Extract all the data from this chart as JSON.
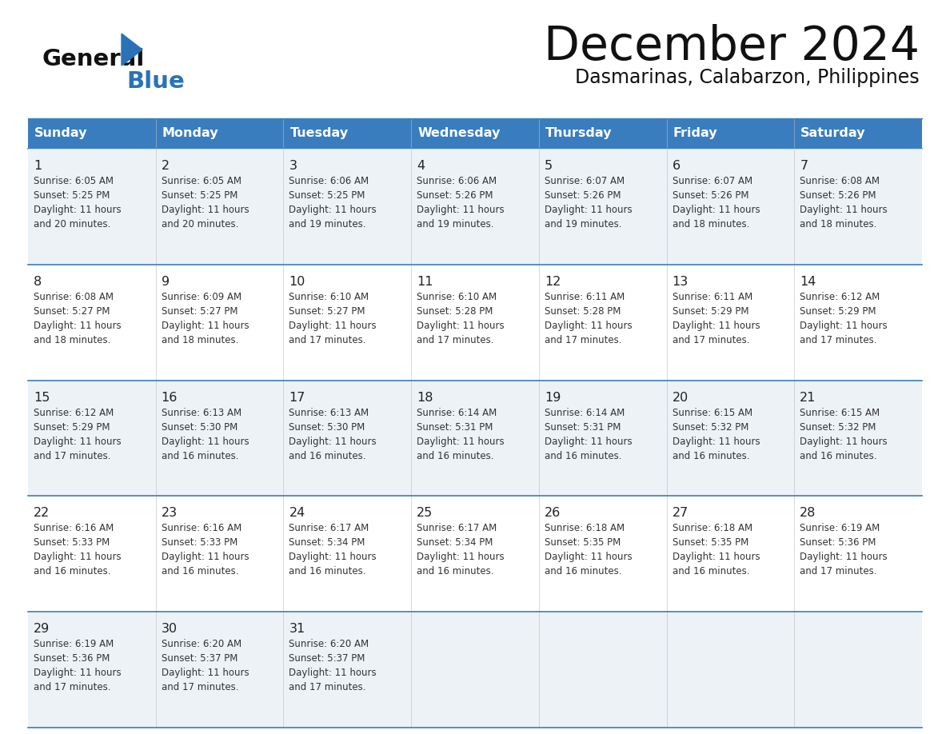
{
  "title": "December 2024",
  "subtitle": "Dasmarinas, Calabarzon, Philippines",
  "header_bg_color": "#3a7dbf",
  "header_text_color": "#ffffff",
  "grid_line_color": "#3a7dbf",
  "day_names": [
    "Sunday",
    "Monday",
    "Tuesday",
    "Wednesday",
    "Thursday",
    "Friday",
    "Saturday"
  ],
  "weeks": [
    [
      {
        "day": 1,
        "sunrise": "6:05 AM",
        "sunset": "5:25 PM",
        "daylight_hours": 11,
        "daylight_minutes": 20
      },
      {
        "day": 2,
        "sunrise": "6:05 AM",
        "sunset": "5:25 PM",
        "daylight_hours": 11,
        "daylight_minutes": 20
      },
      {
        "day": 3,
        "sunrise": "6:06 AM",
        "sunset": "5:25 PM",
        "daylight_hours": 11,
        "daylight_minutes": 19
      },
      {
        "day": 4,
        "sunrise": "6:06 AM",
        "sunset": "5:26 PM",
        "daylight_hours": 11,
        "daylight_minutes": 19
      },
      {
        "day": 5,
        "sunrise": "6:07 AM",
        "sunset": "5:26 PM",
        "daylight_hours": 11,
        "daylight_minutes": 19
      },
      {
        "day": 6,
        "sunrise": "6:07 AM",
        "sunset": "5:26 PM",
        "daylight_hours": 11,
        "daylight_minutes": 18
      },
      {
        "day": 7,
        "sunrise": "6:08 AM",
        "sunset": "5:26 PM",
        "daylight_hours": 11,
        "daylight_minutes": 18
      }
    ],
    [
      {
        "day": 8,
        "sunrise": "6:08 AM",
        "sunset": "5:27 PM",
        "daylight_hours": 11,
        "daylight_minutes": 18
      },
      {
        "day": 9,
        "sunrise": "6:09 AM",
        "sunset": "5:27 PM",
        "daylight_hours": 11,
        "daylight_minutes": 18
      },
      {
        "day": 10,
        "sunrise": "6:10 AM",
        "sunset": "5:27 PM",
        "daylight_hours": 11,
        "daylight_minutes": 17
      },
      {
        "day": 11,
        "sunrise": "6:10 AM",
        "sunset": "5:28 PM",
        "daylight_hours": 11,
        "daylight_minutes": 17
      },
      {
        "day": 12,
        "sunrise": "6:11 AM",
        "sunset": "5:28 PM",
        "daylight_hours": 11,
        "daylight_minutes": 17
      },
      {
        "day": 13,
        "sunrise": "6:11 AM",
        "sunset": "5:29 PM",
        "daylight_hours": 11,
        "daylight_minutes": 17
      },
      {
        "day": 14,
        "sunrise": "6:12 AM",
        "sunset": "5:29 PM",
        "daylight_hours": 11,
        "daylight_minutes": 17
      }
    ],
    [
      {
        "day": 15,
        "sunrise": "6:12 AM",
        "sunset": "5:29 PM",
        "daylight_hours": 11,
        "daylight_minutes": 17
      },
      {
        "day": 16,
        "sunrise": "6:13 AM",
        "sunset": "5:30 PM",
        "daylight_hours": 11,
        "daylight_minutes": 16
      },
      {
        "day": 17,
        "sunrise": "6:13 AM",
        "sunset": "5:30 PM",
        "daylight_hours": 11,
        "daylight_minutes": 16
      },
      {
        "day": 18,
        "sunrise": "6:14 AM",
        "sunset": "5:31 PM",
        "daylight_hours": 11,
        "daylight_minutes": 16
      },
      {
        "day": 19,
        "sunrise": "6:14 AM",
        "sunset": "5:31 PM",
        "daylight_hours": 11,
        "daylight_minutes": 16
      },
      {
        "day": 20,
        "sunrise": "6:15 AM",
        "sunset": "5:32 PM",
        "daylight_hours": 11,
        "daylight_minutes": 16
      },
      {
        "day": 21,
        "sunrise": "6:15 AM",
        "sunset": "5:32 PM",
        "daylight_hours": 11,
        "daylight_minutes": 16
      }
    ],
    [
      {
        "day": 22,
        "sunrise": "6:16 AM",
        "sunset": "5:33 PM",
        "daylight_hours": 11,
        "daylight_minutes": 16
      },
      {
        "day": 23,
        "sunrise": "6:16 AM",
        "sunset": "5:33 PM",
        "daylight_hours": 11,
        "daylight_minutes": 16
      },
      {
        "day": 24,
        "sunrise": "6:17 AM",
        "sunset": "5:34 PM",
        "daylight_hours": 11,
        "daylight_minutes": 16
      },
      {
        "day": 25,
        "sunrise": "6:17 AM",
        "sunset": "5:34 PM",
        "daylight_hours": 11,
        "daylight_minutes": 16
      },
      {
        "day": 26,
        "sunrise": "6:18 AM",
        "sunset": "5:35 PM",
        "daylight_hours": 11,
        "daylight_minutes": 16
      },
      {
        "day": 27,
        "sunrise": "6:18 AM",
        "sunset": "5:35 PM",
        "daylight_hours": 11,
        "daylight_minutes": 16
      },
      {
        "day": 28,
        "sunrise": "6:19 AM",
        "sunset": "5:36 PM",
        "daylight_hours": 11,
        "daylight_minutes": 17
      }
    ],
    [
      {
        "day": 29,
        "sunrise": "6:19 AM",
        "sunset": "5:36 PM",
        "daylight_hours": 11,
        "daylight_minutes": 17
      },
      {
        "day": 30,
        "sunrise": "6:20 AM",
        "sunset": "5:37 PM",
        "daylight_hours": 11,
        "daylight_minutes": 17
      },
      {
        "day": 31,
        "sunrise": "6:20 AM",
        "sunset": "5:37 PM",
        "daylight_hours": 11,
        "daylight_minutes": 17
      },
      null,
      null,
      null,
      null
    ]
  ]
}
